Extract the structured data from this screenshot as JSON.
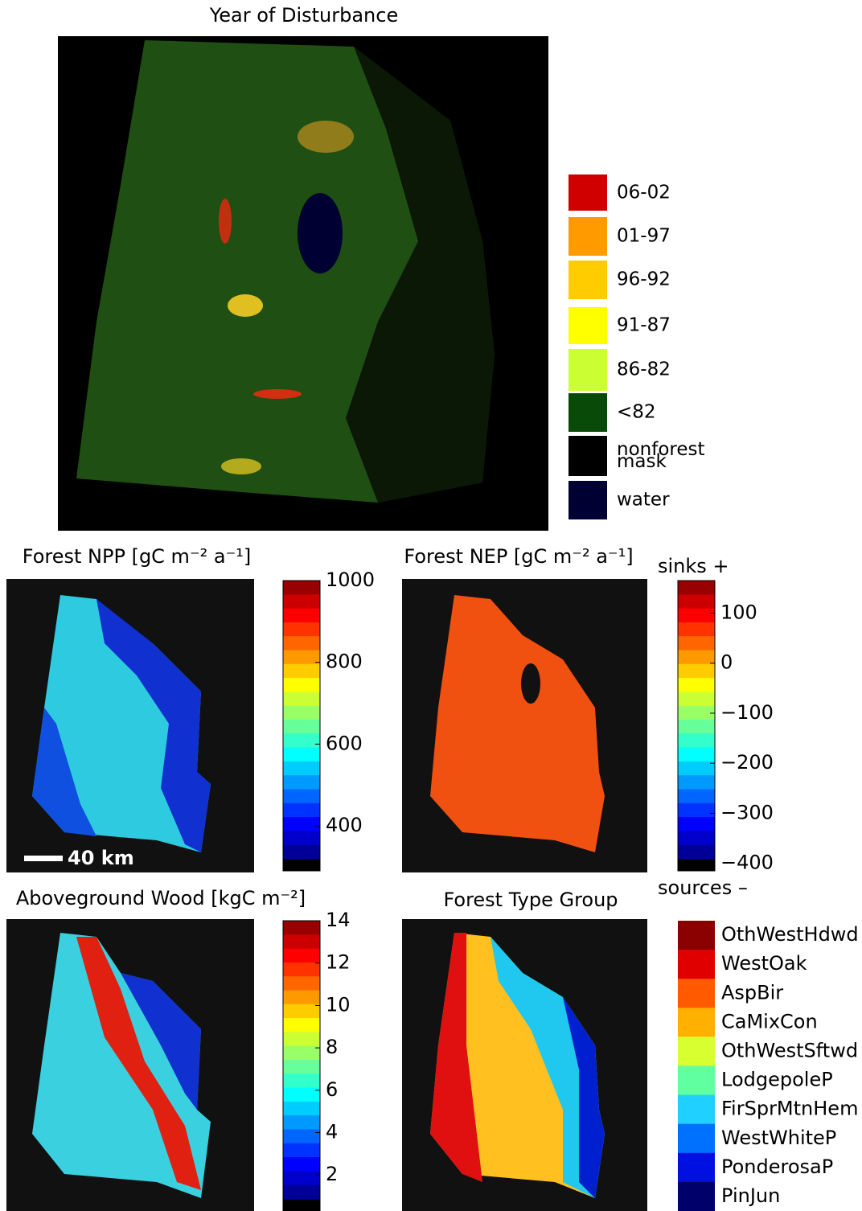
{
  "title": "Year of Disturbance",
  "disturbance_legend": [
    {
      "label": "06-02",
      "color": "#d00000"
    },
    {
      "label": "01-97",
      "color": "#ff9a00"
    },
    {
      "label": "96-92",
      "color": "#ffcc00"
    },
    {
      "label": "91-87",
      "color": "#ffff00"
    },
    {
      "label": "86-82",
      "color": "#ccff33"
    },
    {
      "label": "<82",
      "color": "#0a4a08"
    },
    {
      "label": "nonforest mask",
      "color": "#000000"
    },
    {
      "label": "water",
      "color": "#000033"
    }
  ],
  "panels": [
    {
      "title": "Forest NPP [gC m⁻² a⁻¹]",
      "scale_bar": "40 km",
      "lim": [
        290,
        1000
      ],
      "ticks": [
        400,
        600,
        800,
        1000
      ]
    },
    {
      "title": "Forest NEP [gC m⁻² a⁻¹]",
      "top_label": "sinks +",
      "bottom_label": "sources –",
      "lim": [
        -415,
        165
      ],
      "ticks": [
        {
          "value": -400,
          "label": "−400"
        },
        {
          "value": -300,
          "label": "−300"
        },
        {
          "value": -200,
          "label": "−200"
        },
        {
          "value": -100,
          "label": "−100"
        },
        0,
        100
      ]
    },
    {
      "title": "Aboveground Wood [kgC m⁻²]",
      "lim": [
        0.3,
        14
      ],
      "ticks": [
        2,
        4,
        6,
        8,
        10,
        12,
        14
      ]
    },
    {
      "title": "Forest Type Group",
      "categories": [
        {
          "label": "OthWestHdwd",
          "color": "#8b0000"
        },
        {
          "label": "WestOak",
          "color": "#e00000"
        },
        {
          "label": "AspBir",
          "color": "#ff5a00"
        },
        {
          "label": "CaMixCon",
          "color": "#ffb000"
        },
        {
          "label": "OthWestSftwd",
          "color": "#d8ff30"
        },
        {
          "label": "LodgepoleP",
          "color": "#60ffa0"
        },
        {
          "label": "FirSprMtnHem",
          "color": "#20d0ff"
        },
        {
          "label": "WestWhiteP",
          "color": "#0070ff"
        },
        {
          "label": "PonderosaP",
          "color": "#0010e0"
        },
        {
          "label": "PinJun",
          "color": "#00006a"
        }
      ]
    }
  ]
}
